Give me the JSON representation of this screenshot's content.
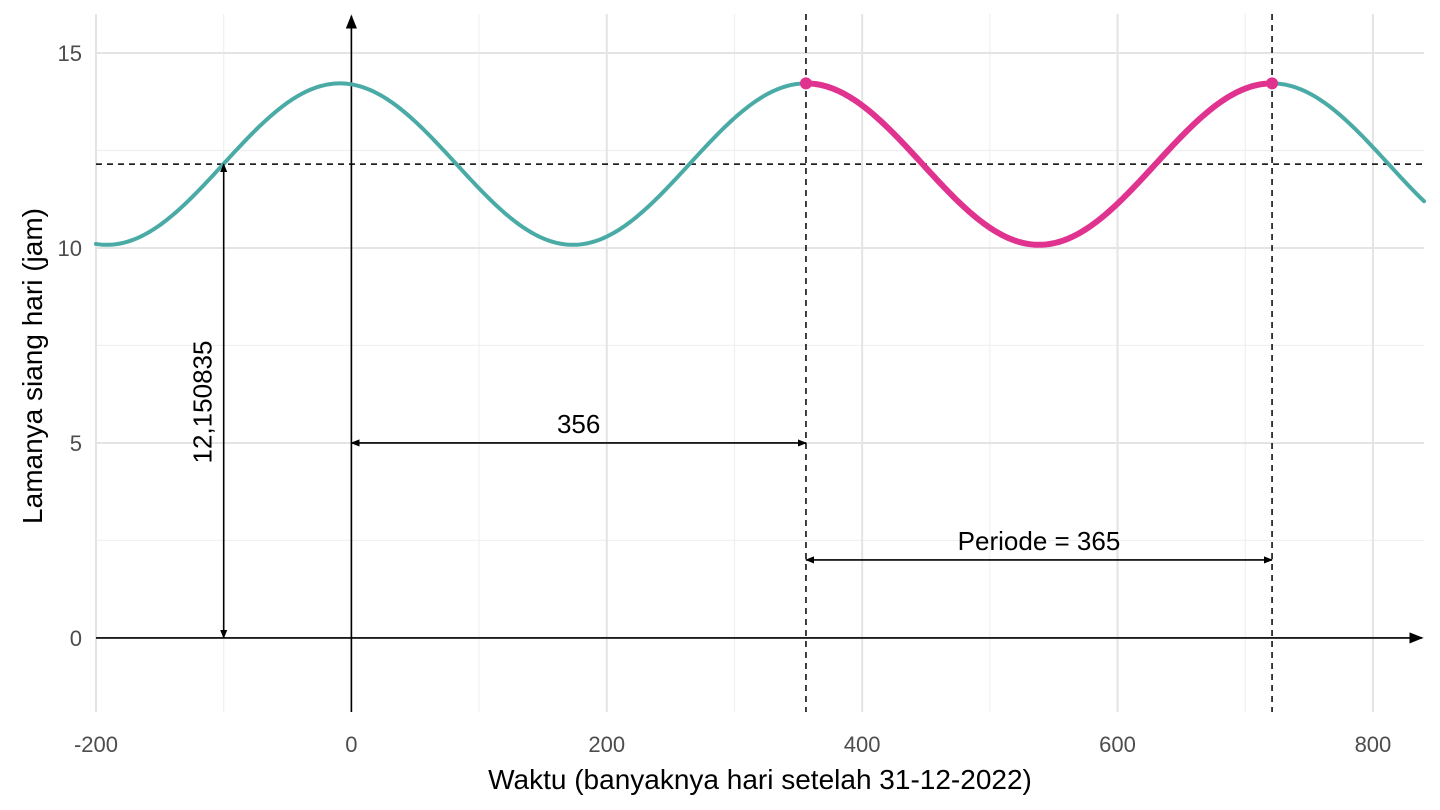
{
  "chart_data": {
    "type": "line",
    "xlabel": "Waktu (banyaknya hari setelah 31-12-2022)",
    "ylabel": "Lamanya siang hari (jam)",
    "xlim": [
      -200,
      840
    ],
    "ylim": [
      -1.9,
      16
    ],
    "x_ticks": [
      -200,
      0,
      200,
      400,
      600,
      800
    ],
    "x_tick_labels": [
      "-200",
      "0",
      "200",
      "400",
      "600",
      "800"
    ],
    "y_ticks": [
      0,
      5,
      10,
      15
    ],
    "y_tick_labels": [
      "0",
      "5",
      "10",
      "15"
    ],
    "grid": true,
    "model": {
      "midline": 12.150835,
      "amplitude": 2.07,
      "period": 365,
      "phase_shift": 356,
      "formula": "y = 12.150835 + 2.07*cos(2*pi*(x - 356)/365)"
    },
    "series": [
      {
        "color": "#4aaba6",
        "x_range": [
          -200,
          840
        ]
      },
      {
        "color": "#e0338f",
        "x_range": [
          356,
          721
        ],
        "highlight": true
      }
    ],
    "points": [
      {
        "x": 356,
        "y": 14.22,
        "color": "#e0338f"
      },
      {
        "x": 721,
        "y": 14.22,
        "color": "#e0338f"
      }
    ],
    "reference_lines": [
      {
        "orientation": "horizontal",
        "value": 12.150835,
        "style": "dashed"
      },
      {
        "orientation": "vertical",
        "value": 356,
        "style": "dashed"
      },
      {
        "orientation": "vertical",
        "value": 721,
        "style": "dashed"
      }
    ],
    "annotations": [
      {
        "text": "356",
        "from": [
          0,
          5
        ],
        "to": [
          356,
          5
        ]
      },
      {
        "text": "Periode = 365",
        "from": [
          356,
          2
        ],
        "to": [
          721,
          2
        ]
      },
      {
        "text": "12,150835",
        "from": [
          -100,
          0
        ],
        "to": [
          -100,
          12.150835
        ],
        "vertical": true
      }
    ]
  }
}
